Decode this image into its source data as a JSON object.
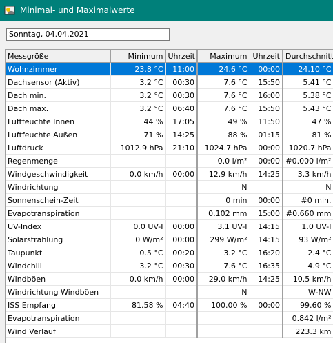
{
  "window": {
    "title": "Minimal- und Maximalwerte"
  },
  "date_field": {
    "value": "Sonntag, 04.04.2021"
  },
  "table": {
    "headers": [
      "Messgröße",
      "Minimum",
      "Uhrzeit",
      "Maximum",
      "Uhrzeit",
      "Durchschnitt"
    ],
    "rows": [
      [
        "Wohnzimmer",
        "23.8 °C",
        "11:00",
        "24.6 °C",
        "00:00",
        "24.10 °C"
      ],
      [
        "Dachsensor (Aktiv)",
        "3.2 °C",
        "00:30",
        "7.6 °C",
        "15:50",
        "5.41 °C"
      ],
      [
        "Dach min.",
        "3.2 °C",
        "00:30",
        "7.6 °C",
        "16:00",
        "5.38 °C"
      ],
      [
        "Dach max.",
        "3.2 °C",
        "06:40",
        "7.6 °C",
        "15:50",
        "5.43 °C"
      ],
      [
        "Luftfeuchte Innen",
        "44 %",
        "17:05",
        "49 %",
        "11:50",
        "47 %"
      ],
      [
        "Luftfeuchte Außen",
        "71 %",
        "14:25",
        "88 %",
        "01:15",
        "81 %"
      ],
      [
        "Luftdruck",
        "1012.9 hPa",
        "21:10",
        "1024.7 hPa",
        "00:00",
        "1020.7 hPa"
      ],
      [
        "Regenmenge",
        "",
        "",
        "0.0 l/m²",
        "00:00",
        "#0.000 l/m²"
      ],
      [
        "Windgeschwindigkeit",
        "0.0 km/h",
        "00:00",
        "12.9 km/h",
        "14:25",
        "3.3 km/h"
      ],
      [
        "Windrichtung",
        "",
        "",
        "N",
        "",
        "N"
      ],
      [
        "Sonnenschein-Zeit",
        "",
        "",
        "0 min",
        "00:00",
        "#0 min."
      ],
      [
        "Evapotranspiration",
        "",
        "",
        "0.102 mm",
        "15:00",
        "#0.660 mm"
      ],
      [
        "UV-Index",
        "0.0 UV-I",
        "00:00",
        "3.1 UV-I",
        "14:15",
        "1.0 UV-I"
      ],
      [
        "Solarstrahlung",
        "0 W/m²",
        "00:00",
        "299 W/m²",
        "14:15",
        "93 W/m²"
      ],
      [
        "Taupunkt",
        "0.5 °C",
        "00:20",
        "3.2 °C",
        "16:20",
        "2.4 °C"
      ],
      [
        "Windchill",
        "3.2 °C",
        "00:30",
        "7.6 °C",
        "16:35",
        "4.9 °C"
      ],
      [
        "Windböen",
        "0.0 km/h",
        "00:00",
        "29.0 km/h",
        "14:25",
        "10.5 km/h"
      ],
      [
        "Windrichtung Windböen",
        "",
        "",
        "N",
        "",
        "W-NW"
      ],
      [
        "ISS Empfang",
        "81.58 %",
        "04:40",
        "100.00 %",
        "00:00",
        "99.60 %"
      ],
      [
        "Evapotranspiration",
        "",
        "",
        "",
        "",
        "0.842 l/m²"
      ],
      [
        "Wind Verlauf",
        "",
        "",
        "",
        "",
        "223.3 km"
      ]
    ],
    "selected_row": 0
  },
  "colors": {
    "titlebar": "#00807a",
    "selection": "#0078d7"
  }
}
